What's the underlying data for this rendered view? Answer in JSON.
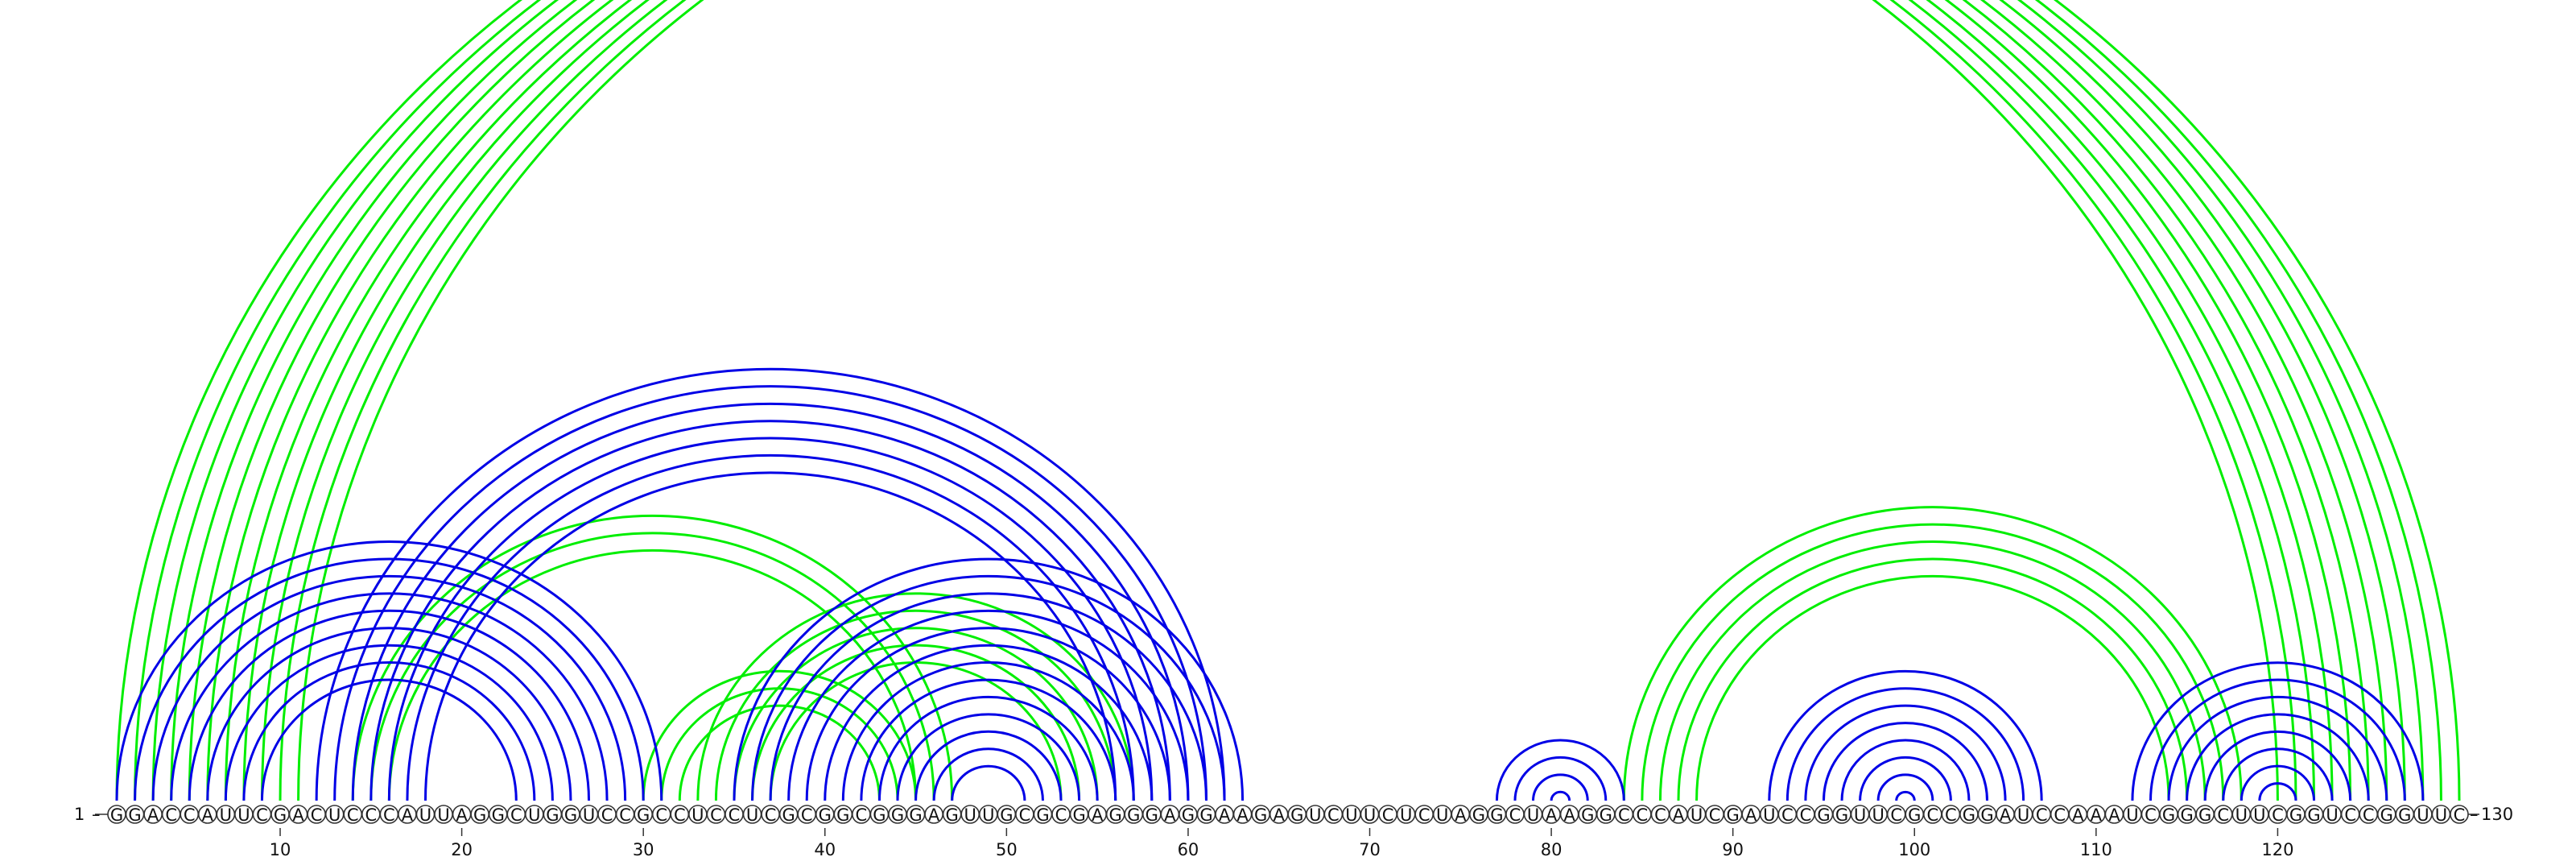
{
  "sequence": "GGACCAUUCGACUCCCAUUAGGCUGGUCCGCCUCCUCGCGGCGGGAGUUGCGCGAGGGAGGAAGAGUCUUCUCUAGGCUAAGGCCCAUCGAUCCGGUUCGCCGGAUCCAAAUCGGGCUUCGGUCCGGUUC",
  "start_label": "1",
  "end_label": "130",
  "ticks": [
    10,
    20,
    30,
    40,
    50,
    60,
    70,
    80,
    90,
    100,
    110,
    120
  ],
  "colors": {
    "blue": "#0000e6",
    "green": "#00ee00"
  },
  "pairs": {
    "blue": [
      [
        1,
        31
      ],
      [
        2,
        30
      ],
      [
        3,
        29
      ],
      [
        4,
        28
      ],
      [
        5,
        27
      ],
      [
        6,
        26
      ],
      [
        7,
        25
      ],
      [
        8,
        24
      ],
      [
        9,
        23
      ],
      [
        12,
        62
      ],
      [
        13,
        61
      ],
      [
        14,
        60
      ],
      [
        15,
        59
      ],
      [
        16,
        58
      ],
      [
        17,
        57
      ],
      [
        18,
        56
      ],
      [
        35,
        63
      ],
      [
        36,
        62
      ],
      [
        37,
        61
      ],
      [
        38,
        60
      ],
      [
        39,
        59
      ],
      [
        40,
        58
      ],
      [
        41,
        57
      ],
      [
        42,
        56
      ],
      [
        43,
        55
      ],
      [
        44,
        54
      ],
      [
        45,
        53
      ],
      [
        46,
        52
      ],
      [
        47,
        51
      ],
      [
        77,
        84
      ],
      [
        78,
        83
      ],
      [
        79,
        82
      ],
      [
        80,
        81
      ],
      [
        92,
        107
      ],
      [
        93,
        106
      ],
      [
        94,
        105
      ],
      [
        95,
        104
      ],
      [
        96,
        103
      ],
      [
        97,
        102
      ],
      [
        98,
        101
      ],
      [
        99,
        100
      ],
      [
        112,
        128
      ],
      [
        113,
        127
      ],
      [
        114,
        126
      ],
      [
        115,
        125
      ],
      [
        116,
        124
      ],
      [
        117,
        123
      ],
      [
        118,
        122
      ],
      [
        119,
        121
      ]
    ],
    "green": [
      [
        1,
        120
      ],
      [
        2,
        121
      ],
      [
        3,
        122
      ],
      [
        4,
        123
      ],
      [
        5,
        124
      ],
      [
        6,
        125
      ],
      [
        7,
        126
      ],
      [
        8,
        127
      ],
      [
        9,
        128
      ],
      [
        10,
        129
      ],
      [
        11,
        130
      ],
      [
        14,
        47
      ],
      [
        15,
        46
      ],
      [
        16,
        45
      ],
      [
        30,
        45
      ],
      [
        31,
        44
      ],
      [
        32,
        43
      ],
      [
        33,
        57
      ],
      [
        34,
        56
      ],
      [
        35,
        55
      ],
      [
        36,
        54
      ],
      [
        37,
        53
      ],
      [
        84,
        118
      ],
      [
        85,
        117
      ],
      [
        86,
        116
      ],
      [
        87,
        115
      ],
      [
        88,
        114
      ]
    ]
  }
}
